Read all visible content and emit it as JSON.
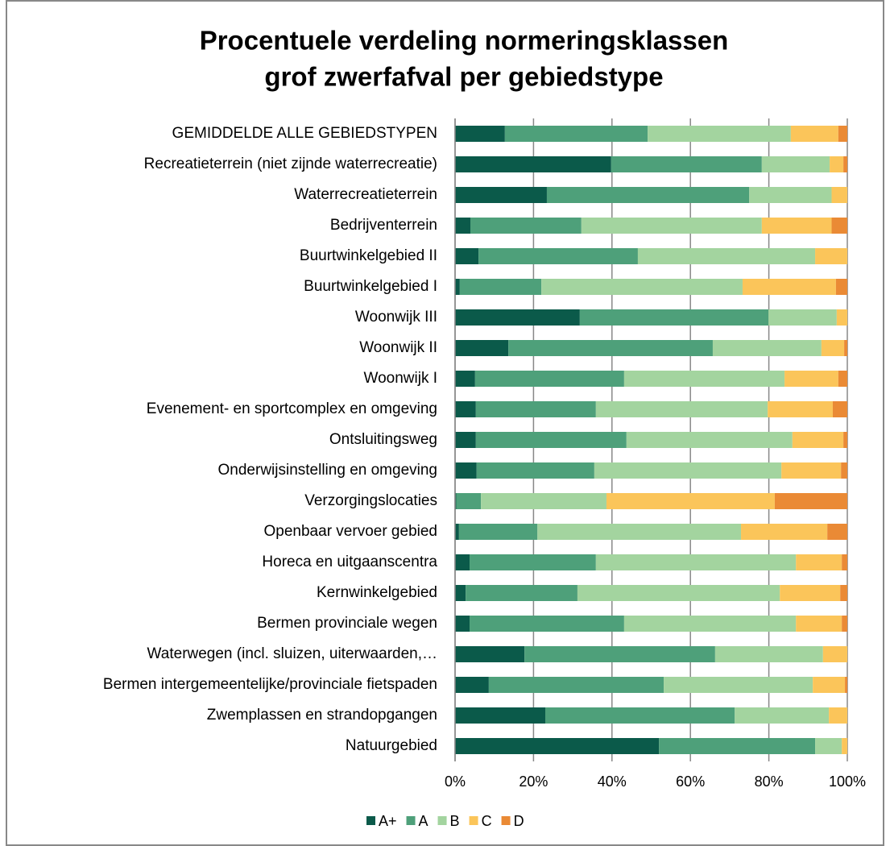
{
  "chart_data": {
    "type": "stacked-bar-horizontal",
    "title": [
      "Procentuele verdeling normeringsklassen",
      "grof zwerfafval per gebiedstype"
    ],
    "categories": [
      "GEMIDDELDE ALLE GEBIEDSTYPEN",
      "Recreatieterrein (niet zijnde waterrecreatie)",
      "Waterrecreatieterrein",
      "Bedrijventerrein",
      "Buurtwinkelgebied II",
      "Buurtwinkelgebied I",
      "Woonwijk III",
      "Woonwijk II",
      "Woonwijk I",
      "Evenement- en sportcomplex en omgeving",
      "Ontsluitingsweg",
      "Onderwijsinstelling en omgeving",
      "Verzorgingslocaties",
      "Openbaar vervoer gebied",
      "Horeca en uitgaanscentra",
      "Kernwinkelgebied",
      "Bermen provinciale wegen",
      "Waterwegen (incl. sluizen, uiterwaarden,…",
      "Bermen intergemeentelijke/provinciale fietspaden",
      "Zwemplassen en strandopgangen",
      "Natuurgebied"
    ],
    "series": [
      {
        "name": "A+",
        "color": "#0b5a4a",
        "values": [
          12.7,
          39.8,
          23.4,
          3.9,
          6,
          1.2,
          31.8,
          13.6,
          5.1,
          5.3,
          5.3,
          5.5,
          0.3,
          1,
          3.7,
          2.7,
          3.7,
          17.7,
          8.6,
          23,
          52
        ]
      },
      {
        "name": "A",
        "color": "#4ea07a",
        "values": [
          36.4,
          38.4,
          51.6,
          28.3,
          40.6,
          20.8,
          48.1,
          52.1,
          38,
          30.6,
          38.4,
          30,
          6.3,
          20,
          32.2,
          28.5,
          39.4,
          48.6,
          44.6,
          48.3,
          39.8
        ]
      },
      {
        "name": "B",
        "color": "#a3d49f",
        "values": [
          36.5,
          17.3,
          21,
          46,
          45.2,
          51.3,
          17.4,
          27.7,
          40.9,
          43.8,
          42.3,
          47.7,
          32,
          51.9,
          51,
          51.6,
          43.8,
          27.5,
          38,
          24,
          6.8
        ]
      },
      {
        "name": "C",
        "color": "#fbc55a",
        "values": [
          12.1,
          3.5,
          4,
          17.8,
          8.2,
          23.8,
          2.7,
          5.8,
          13.7,
          16.6,
          13,
          15.2,
          42.9,
          22,
          11.7,
          15.4,
          11.7,
          6.2,
          8.2,
          4.7,
          1.4
        ]
      },
      {
        "name": "D",
        "color": "#ea8a35",
        "values": [
          2.3,
          1,
          0,
          4,
          0,
          2.9,
          0,
          0.8,
          2.3,
          3.7,
          1,
          1.6,
          18.5,
          5.1,
          1.4,
          1.8,
          1.4,
          0,
          0.6,
          0,
          0
        ]
      }
    ],
    "xlim": [
      0,
      100
    ],
    "xticks": [
      {
        "value": 0,
        "label": "0%"
      },
      {
        "value": 20,
        "label": "20%"
      },
      {
        "value": 40,
        "label": "40%"
      },
      {
        "value": 60,
        "label": "60%"
      },
      {
        "value": 80,
        "label": "80%"
      },
      {
        "value": 100,
        "label": "100%"
      }
    ],
    "grid": true
  }
}
